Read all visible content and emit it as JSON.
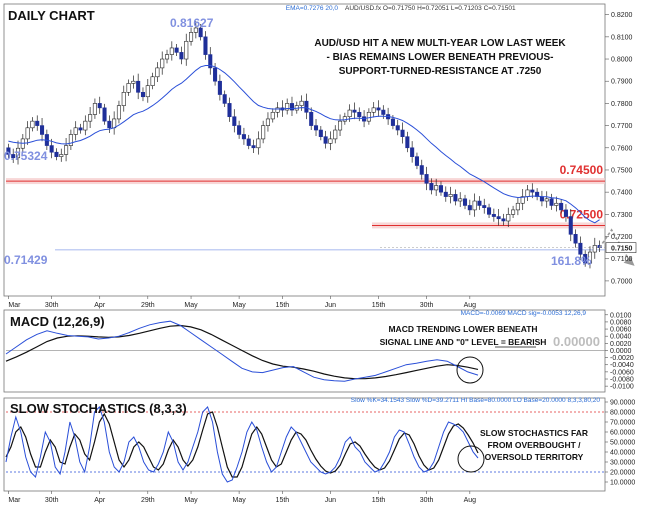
{
  "chart_data": [
    {
      "type": "candlestick",
      "title": "DAILY CHART",
      "info_ema": "EMA=0.7276  20,0",
      "info_ohlc": "AUD/USD.fx O=0.71750 H=0.72051 L=0.71203 C=0.71501",
      "annotation": [
        "AUD/USD HIT A NEW MULTI-YEAR LOW LAST WEEK",
        "- BIAS REMAINS LOWER BENEATH PREVIOUS-",
        "SUPPORT-TURNED-RESISTANCE AT .7250"
      ],
      "ylim": [
        0.695,
        0.823
      ],
      "yticks": [
        "0.8200",
        "0.8100",
        "0.8000",
        "0.7900",
        "0.7800",
        "0.7700",
        "0.7600",
        "0.7500",
        "0.7400",
        "0.7300",
        "0.7200",
        "0.7100",
        "0.7000"
      ],
      "yticks_values": [
        0.82,
        0.81,
        0.8,
        0.79,
        0.78,
        0.77,
        0.76,
        0.75,
        0.74,
        0.73,
        0.72,
        0.71,
        0.7
      ],
      "last_price_label": "0.7150",
      "last_price": 0.715,
      "levels": [
        {
          "label": "0.74500",
          "value": 0.745,
          "color": "#e03030"
        },
        {
          "label": "0.72500",
          "value": 0.725,
          "color": "#e03030"
        }
      ],
      "price_labels": [
        {
          "text": "0.81627",
          "value": 0.81627
        },
        {
          "text": "0.75324",
          "value": 0.75324
        },
        {
          "text": "0.71429",
          "value": 0.71429
        }
      ],
      "fib_label": "161.8%",
      "fib_value": 0.714,
      "closes": [
        0.757,
        0.7555,
        0.7598,
        0.764,
        0.769,
        0.772,
        0.77,
        0.766,
        0.761,
        0.758,
        0.756,
        0.757,
        0.761,
        0.766,
        0.769,
        0.768,
        0.772,
        0.775,
        0.78,
        0.778,
        0.772,
        0.769,
        0.773,
        0.779,
        0.785,
        0.789,
        0.79,
        0.785,
        0.783,
        0.788,
        0.792,
        0.796,
        0.8,
        0.802,
        0.805,
        0.803,
        0.8,
        0.808,
        0.812,
        0.814,
        0.81,
        0.802,
        0.796,
        0.79,
        0.784,
        0.78,
        0.774,
        0.77,
        0.766,
        0.764,
        0.761,
        0.76,
        0.764,
        0.77,
        0.773,
        0.776,
        0.778,
        0.777,
        0.78,
        0.777,
        0.779,
        0.781,
        0.776,
        0.77,
        0.768,
        0.765,
        0.762,
        0.764,
        0.768,
        0.772,
        0.774,
        0.777,
        0.776,
        0.774,
        0.772,
        0.776,
        0.778,
        0.777,
        0.775,
        0.773,
        0.77,
        0.768,
        0.765,
        0.76,
        0.756,
        0.752,
        0.748,
        0.744,
        0.741,
        0.743,
        0.74,
        0.738,
        0.739,
        0.736,
        0.737,
        0.734,
        0.732,
        0.736,
        0.734,
        0.733,
        0.73,
        0.729,
        0.728,
        0.727,
        0.73,
        0.732,
        0.735,
        0.738,
        0.741,
        0.74,
        0.738,
        0.736,
        0.737,
        0.734,
        0.735,
        0.732,
        0.729,
        0.721,
        0.717,
        0.712,
        0.708,
        0.713,
        0.716,
        0.715
      ],
      "ema": [
        0.763,
        0.7625,
        0.7622,
        0.762,
        0.7622,
        0.7628,
        0.7634,
        0.7636,
        0.7634,
        0.7629,
        0.7622,
        0.7618,
        0.7617,
        0.7621,
        0.7628,
        0.7633,
        0.7642,
        0.7652,
        0.7666,
        0.7677,
        0.7682,
        0.7684,
        0.769,
        0.7702,
        0.7717,
        0.7733,
        0.7749,
        0.7758,
        0.7765,
        0.7776,
        0.779,
        0.7806,
        0.7824,
        0.7843,
        0.7863,
        0.7879,
        0.7891,
        0.7909,
        0.7929,
        0.7949,
        0.7965,
        0.7971,
        0.7971,
        0.7965,
        0.7953,
        0.7938,
        0.7919,
        0.7898,
        0.7875,
        0.7853,
        0.783,
        0.7808,
        0.7791,
        0.7783,
        0.7777,
        0.7775,
        0.7775,
        0.7775,
        0.7777,
        0.7777,
        0.7778,
        0.7781,
        0.778,
        0.7772,
        0.7764,
        0.7753,
        0.7741,
        0.7731,
        0.7726,
        0.7725,
        0.7726,
        0.773,
        0.7733,
        0.7733,
        0.7732,
        0.7735,
        0.7739,
        0.7742,
        0.7742,
        0.7741,
        0.7737,
        0.7731,
        0.7723,
        0.7711,
        0.7697,
        0.768,
        0.7662,
        0.7641,
        0.762,
        0.7602,
        0.7583,
        0.7565,
        0.7549,
        0.7531,
        0.7516,
        0.7499,
        0.7482,
        0.7471,
        0.7459,
        0.7447,
        0.7433,
        0.7419,
        0.7406,
        0.7393,
        0.7385,
        0.7379,
        0.7376,
        0.7377,
        0.738,
        0.7382,
        0.7382,
        0.738,
        0.7379,
        0.7375,
        0.7373,
        0.7368,
        0.7361,
        0.7346,
        0.7329,
        0.7309,
        0.7287,
        0.7272,
        0.7262,
        0.7276
      ],
      "xticks": [
        "Mar",
        "30th",
        "Apr",
        "29th",
        "May",
        "May",
        "15th",
        "Jun",
        "15th",
        "30th",
        "Aug"
      ],
      "xticks_idx": [
        0,
        9,
        19,
        29,
        38,
        48,
        57,
        67,
        77,
        87,
        96
      ]
    },
    {
      "type": "line",
      "title": "MACD (12,26,9)",
      "info": "MACD=-0.0069 MACD sig=-0.0053  12,26,9",
      "annotation": [
        "MACD TRENDING LOWER BENEATH",
        "SIGNAL LINE AND \"0\" LEVEL = BEARISH"
      ],
      "bearish_word": "BEARISH",
      "zero_label": "0.00000",
      "ylim": [
        -0.0108,
        0.0105
      ],
      "yticks": [
        "0.0100",
        "0.0080",
        "0.0060",
        "0.0040",
        "0.0020",
        "0.0000",
        "-0.0020",
        "-0.0040",
        "-0.0060",
        "-0.0080",
        "-0.0100"
      ],
      "yticks_values": [
        0.01,
        0.008,
        0.006,
        0.004,
        0.002,
        0.0,
        -0.002,
        -0.004,
        -0.006,
        -0.008,
        -0.01
      ],
      "series": [
        {
          "key": "MACD",
          "color": "#2a4fd8",
          "values": [
            -0.001,
            0.001,
            0.003,
            0.0045,
            0.0055,
            0.0048,
            0.0042,
            0.004,
            0.0038,
            0.0032,
            0.0035,
            0.004,
            0.005,
            0.0062,
            0.0072,
            0.0078,
            0.0082,
            0.007,
            0.005,
            0.003,
            0.001,
            -0.001,
            -0.003,
            -0.005,
            -0.006,
            -0.0062,
            -0.0055,
            -0.0048,
            -0.0045,
            -0.006,
            -0.0075,
            -0.0082,
            -0.0085,
            -0.0086,
            -0.008,
            -0.0075,
            -0.007,
            -0.006,
            -0.005,
            -0.004,
            -0.0036,
            -0.003,
            -0.0026,
            -0.003,
            -0.0045,
            -0.006,
            -0.0069
          ]
        },
        {
          "key": "Signal",
          "color": "#111111",
          "values": [
            -0.003,
            -0.0018,
            -0.0005,
            0.001,
            0.0025,
            0.0035,
            0.004,
            0.0041,
            0.004,
            0.0038,
            0.0037,
            0.0038,
            0.0042,
            0.0048,
            0.0055,
            0.0062,
            0.0068,
            0.007,
            0.0066,
            0.0058,
            0.0045,
            0.003,
            0.0015,
            0.0,
            -0.0015,
            -0.0028,
            -0.0038,
            -0.0044,
            -0.0047,
            -0.0052,
            -0.0058,
            -0.0066,
            -0.0072,
            -0.0077,
            -0.0079,
            -0.0079,
            -0.0077,
            -0.0073,
            -0.0068,
            -0.0062,
            -0.0056,
            -0.005,
            -0.0044,
            -0.004,
            -0.0042,
            -0.0047,
            -0.0053
          ]
        }
      ]
    },
    {
      "type": "line",
      "title": "SLOW STOCHASTICS (8,3,3)",
      "info": "Slow %K=34.1543  Slow %D=39.2711  HI Base=80.0000  LO Base=20.0000  8,3,3,80,20",
      "annotation": [
        "SLOW STOCHASTICS FAR",
        "FROM OVERBOUGHT /",
        "OVERSOLD TERRITORY"
      ],
      "ylim": [
        3,
        92
      ],
      "hi_base": 80,
      "lo_base": 20,
      "yticks": [
        "90.0000",
        "80.0000",
        "70.0000",
        "60.0000",
        "50.0000",
        "40.0000",
        "30.0000",
        "20.0000",
        "10.0000"
      ],
      "yticks_values": [
        90,
        80,
        70,
        60,
        50,
        40,
        30,
        20,
        10
      ],
      "series": [
        {
          "key": "%K",
          "color": "#2a4fd8",
          "values": [
            30,
            55,
            75,
            60,
            35,
            20,
            15,
            35,
            60,
            50,
            25,
            18,
            40,
            70,
            55,
            30,
            20,
            45,
            80,
            85,
            70,
            40,
            25,
            20,
            30,
            50,
            55,
            45,
            30,
            22,
            20,
            28,
            40,
            60,
            50,
            30,
            22,
            30,
            45,
            60,
            80,
            85,
            70,
            40,
            18,
            10,
            12,
            25,
            40,
            60,
            70,
            62,
            45,
            30,
            20,
            25,
            40,
            55,
            65,
            60,
            50,
            40,
            30,
            25,
            20,
            18,
            20,
            25,
            35,
            50,
            55,
            45,
            40,
            30,
            25,
            20,
            22,
            30,
            40,
            55,
            62,
            60,
            48,
            35,
            25,
            20,
            22,
            30,
            45,
            60,
            70,
            68,
            65,
            60,
            50,
            40,
            34
          ]
        },
        {
          "key": "%D",
          "color": "#111111",
          "values": [
            35,
            45,
            60,
            65,
            55,
            38,
            25,
            25,
            40,
            52,
            45,
            30,
            28,
            45,
            58,
            52,
            38,
            32,
            50,
            70,
            78,
            68,
            50,
            32,
            25,
            32,
            45,
            50,
            45,
            35,
            25,
            22,
            28,
            42,
            52,
            45,
            32,
            26,
            32,
            45,
            62,
            78,
            80,
            65,
            45,
            25,
            15,
            15,
            25,
            42,
            58,
            65,
            58,
            45,
            32,
            25,
            28,
            40,
            52,
            60,
            58,
            52,
            42,
            33,
            26,
            21,
            19,
            21,
            27,
            38,
            48,
            50,
            46,
            38,
            31,
            25,
            22,
            24,
            31,
            42,
            53,
            59,
            57,
            48,
            36,
            27,
            22,
            24,
            32,
            45,
            58,
            66,
            68,
            64,
            57,
            49,
            39
          ]
        }
      ]
    }
  ]
}
